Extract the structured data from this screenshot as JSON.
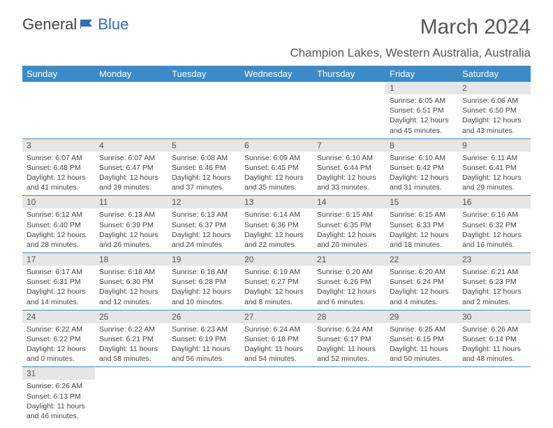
{
  "logo": {
    "part1": "General",
    "part2": "Blue",
    "color1": "#555555",
    "color2": "#2e6fb5"
  },
  "title": "March 2024",
  "subtitle": "Champion Lakes, Western Australia, Australia",
  "header_bg": "#3b8bc9",
  "daybar_bg": "#e6e6e6",
  "weekdays": [
    "Sunday",
    "Monday",
    "Tuesday",
    "Wednesday",
    "Thursday",
    "Friday",
    "Saturday"
  ],
  "weeks": [
    [
      null,
      null,
      null,
      null,
      null,
      {
        "n": "1",
        "sr": "Sunrise: 6:05 AM",
        "ss": "Sunset: 6:51 PM",
        "dl": "Daylight: 12 hours and 45 minutes."
      },
      {
        "n": "2",
        "sr": "Sunrise: 6:06 AM",
        "ss": "Sunset: 6:50 PM",
        "dl": "Daylight: 12 hours and 43 minutes."
      }
    ],
    [
      {
        "n": "3",
        "sr": "Sunrise: 6:07 AM",
        "ss": "Sunset: 6:48 PM",
        "dl": "Daylight: 12 hours and 41 minutes."
      },
      {
        "n": "4",
        "sr": "Sunrise: 6:07 AM",
        "ss": "Sunset: 6:47 PM",
        "dl": "Daylight: 12 hours and 39 minutes."
      },
      {
        "n": "5",
        "sr": "Sunrise: 6:08 AM",
        "ss": "Sunset: 6:46 PM",
        "dl": "Daylight: 12 hours and 37 minutes."
      },
      {
        "n": "6",
        "sr": "Sunrise: 6:09 AM",
        "ss": "Sunset: 6:45 PM",
        "dl": "Daylight: 12 hours and 35 minutes."
      },
      {
        "n": "7",
        "sr": "Sunrise: 6:10 AM",
        "ss": "Sunset: 6:44 PM",
        "dl": "Daylight: 12 hours and 33 minutes."
      },
      {
        "n": "8",
        "sr": "Sunrise: 6:10 AM",
        "ss": "Sunset: 6:42 PM",
        "dl": "Daylight: 12 hours and 31 minutes."
      },
      {
        "n": "9",
        "sr": "Sunrise: 6:11 AM",
        "ss": "Sunset: 6:41 PM",
        "dl": "Daylight: 12 hours and 29 minutes."
      }
    ],
    [
      {
        "n": "10",
        "sr": "Sunrise: 6:12 AM",
        "ss": "Sunset: 6:40 PM",
        "dl": "Daylight: 12 hours and 28 minutes."
      },
      {
        "n": "11",
        "sr": "Sunrise: 6:13 AM",
        "ss": "Sunset: 6:39 PM",
        "dl": "Daylight: 12 hours and 26 minutes."
      },
      {
        "n": "12",
        "sr": "Sunrise: 6:13 AM",
        "ss": "Sunset: 6:37 PM",
        "dl": "Daylight: 12 hours and 24 minutes."
      },
      {
        "n": "13",
        "sr": "Sunrise: 6:14 AM",
        "ss": "Sunset: 6:36 PM",
        "dl": "Daylight: 12 hours and 22 minutes."
      },
      {
        "n": "14",
        "sr": "Sunrise: 6:15 AM",
        "ss": "Sunset: 6:35 PM",
        "dl": "Daylight: 12 hours and 20 minutes."
      },
      {
        "n": "15",
        "sr": "Sunrise: 6:15 AM",
        "ss": "Sunset: 6:33 PM",
        "dl": "Daylight: 12 hours and 18 minutes."
      },
      {
        "n": "16",
        "sr": "Sunrise: 6:16 AM",
        "ss": "Sunset: 6:32 PM",
        "dl": "Daylight: 12 hours and 16 minutes."
      }
    ],
    [
      {
        "n": "17",
        "sr": "Sunrise: 6:17 AM",
        "ss": "Sunset: 6:31 PM",
        "dl": "Daylight: 12 hours and 14 minutes."
      },
      {
        "n": "18",
        "sr": "Sunrise: 6:18 AM",
        "ss": "Sunset: 6:30 PM",
        "dl": "Daylight: 12 hours and 12 minutes."
      },
      {
        "n": "19",
        "sr": "Sunrise: 6:18 AM",
        "ss": "Sunset: 6:28 PM",
        "dl": "Daylight: 12 hours and 10 minutes."
      },
      {
        "n": "20",
        "sr": "Sunrise: 6:19 AM",
        "ss": "Sunset: 6:27 PM",
        "dl": "Daylight: 12 hours and 8 minutes."
      },
      {
        "n": "21",
        "sr": "Sunrise: 6:20 AM",
        "ss": "Sunset: 6:26 PM",
        "dl": "Daylight: 12 hours and 6 minutes."
      },
      {
        "n": "22",
        "sr": "Sunrise: 6:20 AM",
        "ss": "Sunset: 6:24 PM",
        "dl": "Daylight: 12 hours and 4 minutes."
      },
      {
        "n": "23",
        "sr": "Sunrise: 6:21 AM",
        "ss": "Sunset: 6:23 PM",
        "dl": "Daylight: 12 hours and 2 minutes."
      }
    ],
    [
      {
        "n": "24",
        "sr": "Sunrise: 6:22 AM",
        "ss": "Sunset: 6:22 PM",
        "dl": "Daylight: 12 hours and 0 minutes."
      },
      {
        "n": "25",
        "sr": "Sunrise: 6:22 AM",
        "ss": "Sunset: 6:21 PM",
        "dl": "Daylight: 11 hours and 58 minutes."
      },
      {
        "n": "26",
        "sr": "Sunrise: 6:23 AM",
        "ss": "Sunset: 6:19 PM",
        "dl": "Daylight: 11 hours and 56 minutes."
      },
      {
        "n": "27",
        "sr": "Sunrise: 6:24 AM",
        "ss": "Sunset: 6:18 PM",
        "dl": "Daylight: 11 hours and 54 minutes."
      },
      {
        "n": "28",
        "sr": "Sunrise: 6:24 AM",
        "ss": "Sunset: 6:17 PM",
        "dl": "Daylight: 11 hours and 52 minutes."
      },
      {
        "n": "29",
        "sr": "Sunrise: 6:25 AM",
        "ss": "Sunset: 6:15 PM",
        "dl": "Daylight: 11 hours and 50 minutes."
      },
      {
        "n": "30",
        "sr": "Sunrise: 6:26 AM",
        "ss": "Sunset: 6:14 PM",
        "dl": "Daylight: 11 hours and 48 minutes."
      }
    ],
    [
      {
        "n": "31",
        "sr": "Sunrise: 6:26 AM",
        "ss": "Sunset: 6:13 PM",
        "dl": "Daylight: 11 hours and 46 minutes."
      },
      null,
      null,
      null,
      null,
      null,
      null
    ]
  ]
}
